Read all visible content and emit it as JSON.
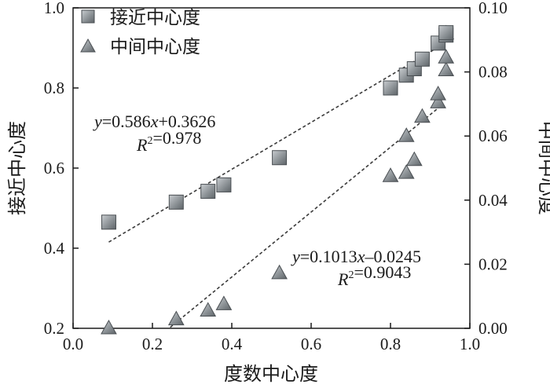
{
  "chart_data": {
    "type": "scatter",
    "xlabel": "度数中心度",
    "ylabel_left": "接近中心度",
    "ylabel_right": "中间中心度",
    "xlim": [
      0.0,
      1.0
    ],
    "ylim_left": [
      0.2,
      1.0
    ],
    "ylim_right": [
      0.0,
      0.1
    ],
    "x_ticks": [
      "0.0",
      "0.2",
      "0.4",
      "0.6",
      "0.8",
      "1.0"
    ],
    "y_left_ticks": [
      "0.2",
      "0.4",
      "0.6",
      "0.8",
      "1.0"
    ],
    "y_right_ticks": [
      "0.00",
      "0.02",
      "0.04",
      "0.06",
      "0.08",
      "0.10"
    ],
    "grid": false,
    "legend_position": "top-left",
    "series": [
      {
        "name": "接近中心度",
        "marker": "square",
        "axis": "left",
        "color": "#8c9296",
        "points": [
          {
            "x": 0.09,
            "y": 0.465
          },
          {
            "x": 0.26,
            "y": 0.515
          },
          {
            "x": 0.34,
            "y": 0.542
          },
          {
            "x": 0.38,
            "y": 0.558
          },
          {
            "x": 0.52,
            "y": 0.626
          },
          {
            "x": 0.8,
            "y": 0.8
          },
          {
            "x": 0.84,
            "y": 0.832
          },
          {
            "x": 0.86,
            "y": 0.848
          },
          {
            "x": 0.88,
            "y": 0.872
          },
          {
            "x": 0.92,
            "y": 0.912
          },
          {
            "x": 0.94,
            "y": 0.932
          },
          {
            "x": 0.94,
            "y": 0.938
          }
        ]
      },
      {
        "name": "中间中心度",
        "marker": "triangle",
        "axis": "right",
        "color": "#8c9296",
        "points": [
          {
            "x": 0.09,
            "y": 0.0
          },
          {
            "x": 0.26,
            "y": 0.0028
          },
          {
            "x": 0.34,
            "y": 0.0055
          },
          {
            "x": 0.38,
            "y": 0.0075
          },
          {
            "x": 0.52,
            "y": 0.0172
          },
          {
            "x": 0.8,
            "y": 0.0475
          },
          {
            "x": 0.84,
            "y": 0.0485
          },
          {
            "x": 0.86,
            "y": 0.0525
          },
          {
            "x": 0.84,
            "y": 0.06
          },
          {
            "x": 0.88,
            "y": 0.066
          },
          {
            "x": 0.92,
            "y": 0.0705
          },
          {
            "x": 0.92,
            "y": 0.073
          },
          {
            "x": 0.94,
            "y": 0.0805
          },
          {
            "x": 0.94,
            "y": 0.0845
          },
          {
            "x": 0.94,
            "y": 0.092
          }
        ]
      }
    ],
    "trendlines": [
      {
        "axis": "left",
        "slope": 0.586,
        "intercept": 0.3626,
        "x_range": [
          0.09,
          0.93
        ],
        "equation_label": "y=0.586x+0.3626",
        "r2_label": "R²=0.978"
      },
      {
        "axis": "right",
        "slope": 0.1013,
        "intercept": -0.0245,
        "x_range": [
          0.245,
          0.925
        ],
        "equation_label": "y=0.1013x–0.0245",
        "r2_label": "R²=0.9043"
      }
    ]
  }
}
